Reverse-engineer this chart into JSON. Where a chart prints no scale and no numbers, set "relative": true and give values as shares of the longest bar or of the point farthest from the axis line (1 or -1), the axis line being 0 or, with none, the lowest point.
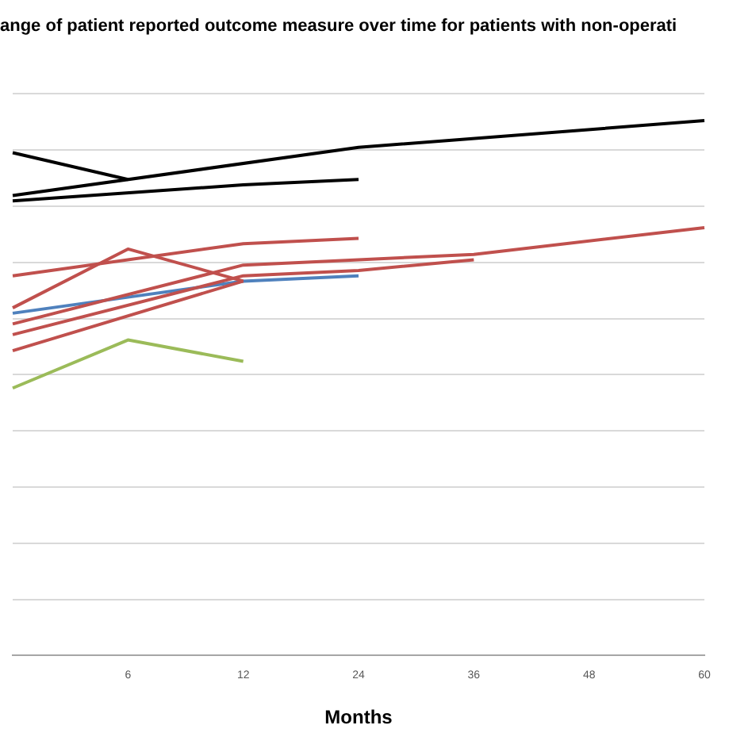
{
  "chart_data": {
    "type": "line",
    "title": "ange of patient reported outcome measure over time for patients with non-operati",
    "xlabel": "Months",
    "relative": true,
    "grid": "y",
    "legend": false,
    "marker": "none",
    "categories": [
      null,
      "6",
      "12",
      "24",
      "36",
      "48",
      "60"
    ],
    "series": [
      {
        "color": "#000000",
        "values": [
          0.86,
          null,
          null,
          0.95,
          null,
          null,
          1
        ]
      },
      {
        "color": "#000000",
        "values": [
          0.85,
          null,
          0.88,
          0.89,
          null,
          null,
          null
        ]
      },
      {
        "color": "#000000",
        "values": [
          0.94,
          0.89,
          null,
          null,
          null,
          null,
          null
        ]
      },
      {
        "color": "#c0504d",
        "values": [
          0.71,
          null,
          0.77,
          0.78,
          null,
          null,
          null
        ]
      },
      {
        "color": "#c0504d",
        "values": [
          0.65,
          0.76,
          0.7,
          null,
          null,
          null,
          null
        ]
      },
      {
        "color": "#c0504d",
        "values": [
          0.62,
          null,
          0.73,
          0.74,
          0.75,
          null,
          0.8
        ]
      },
      {
        "color": "#c0504d",
        "values": [
          0.6,
          null,
          0.71,
          0.72,
          0.74,
          null,
          null
        ]
      },
      {
        "color": "#c0504d",
        "values": [
          0.57,
          null,
          0.7,
          null,
          null,
          null,
          null
        ]
      },
      {
        "color": "#4f81bd",
        "values": [
          0.64,
          0.67,
          0.7,
          0.71,
          null,
          null,
          null
        ]
      },
      {
        "color": "#9bbb59",
        "values": [
          0.5,
          0.59,
          0.55,
          null,
          null,
          null,
          null
        ]
      }
    ]
  }
}
